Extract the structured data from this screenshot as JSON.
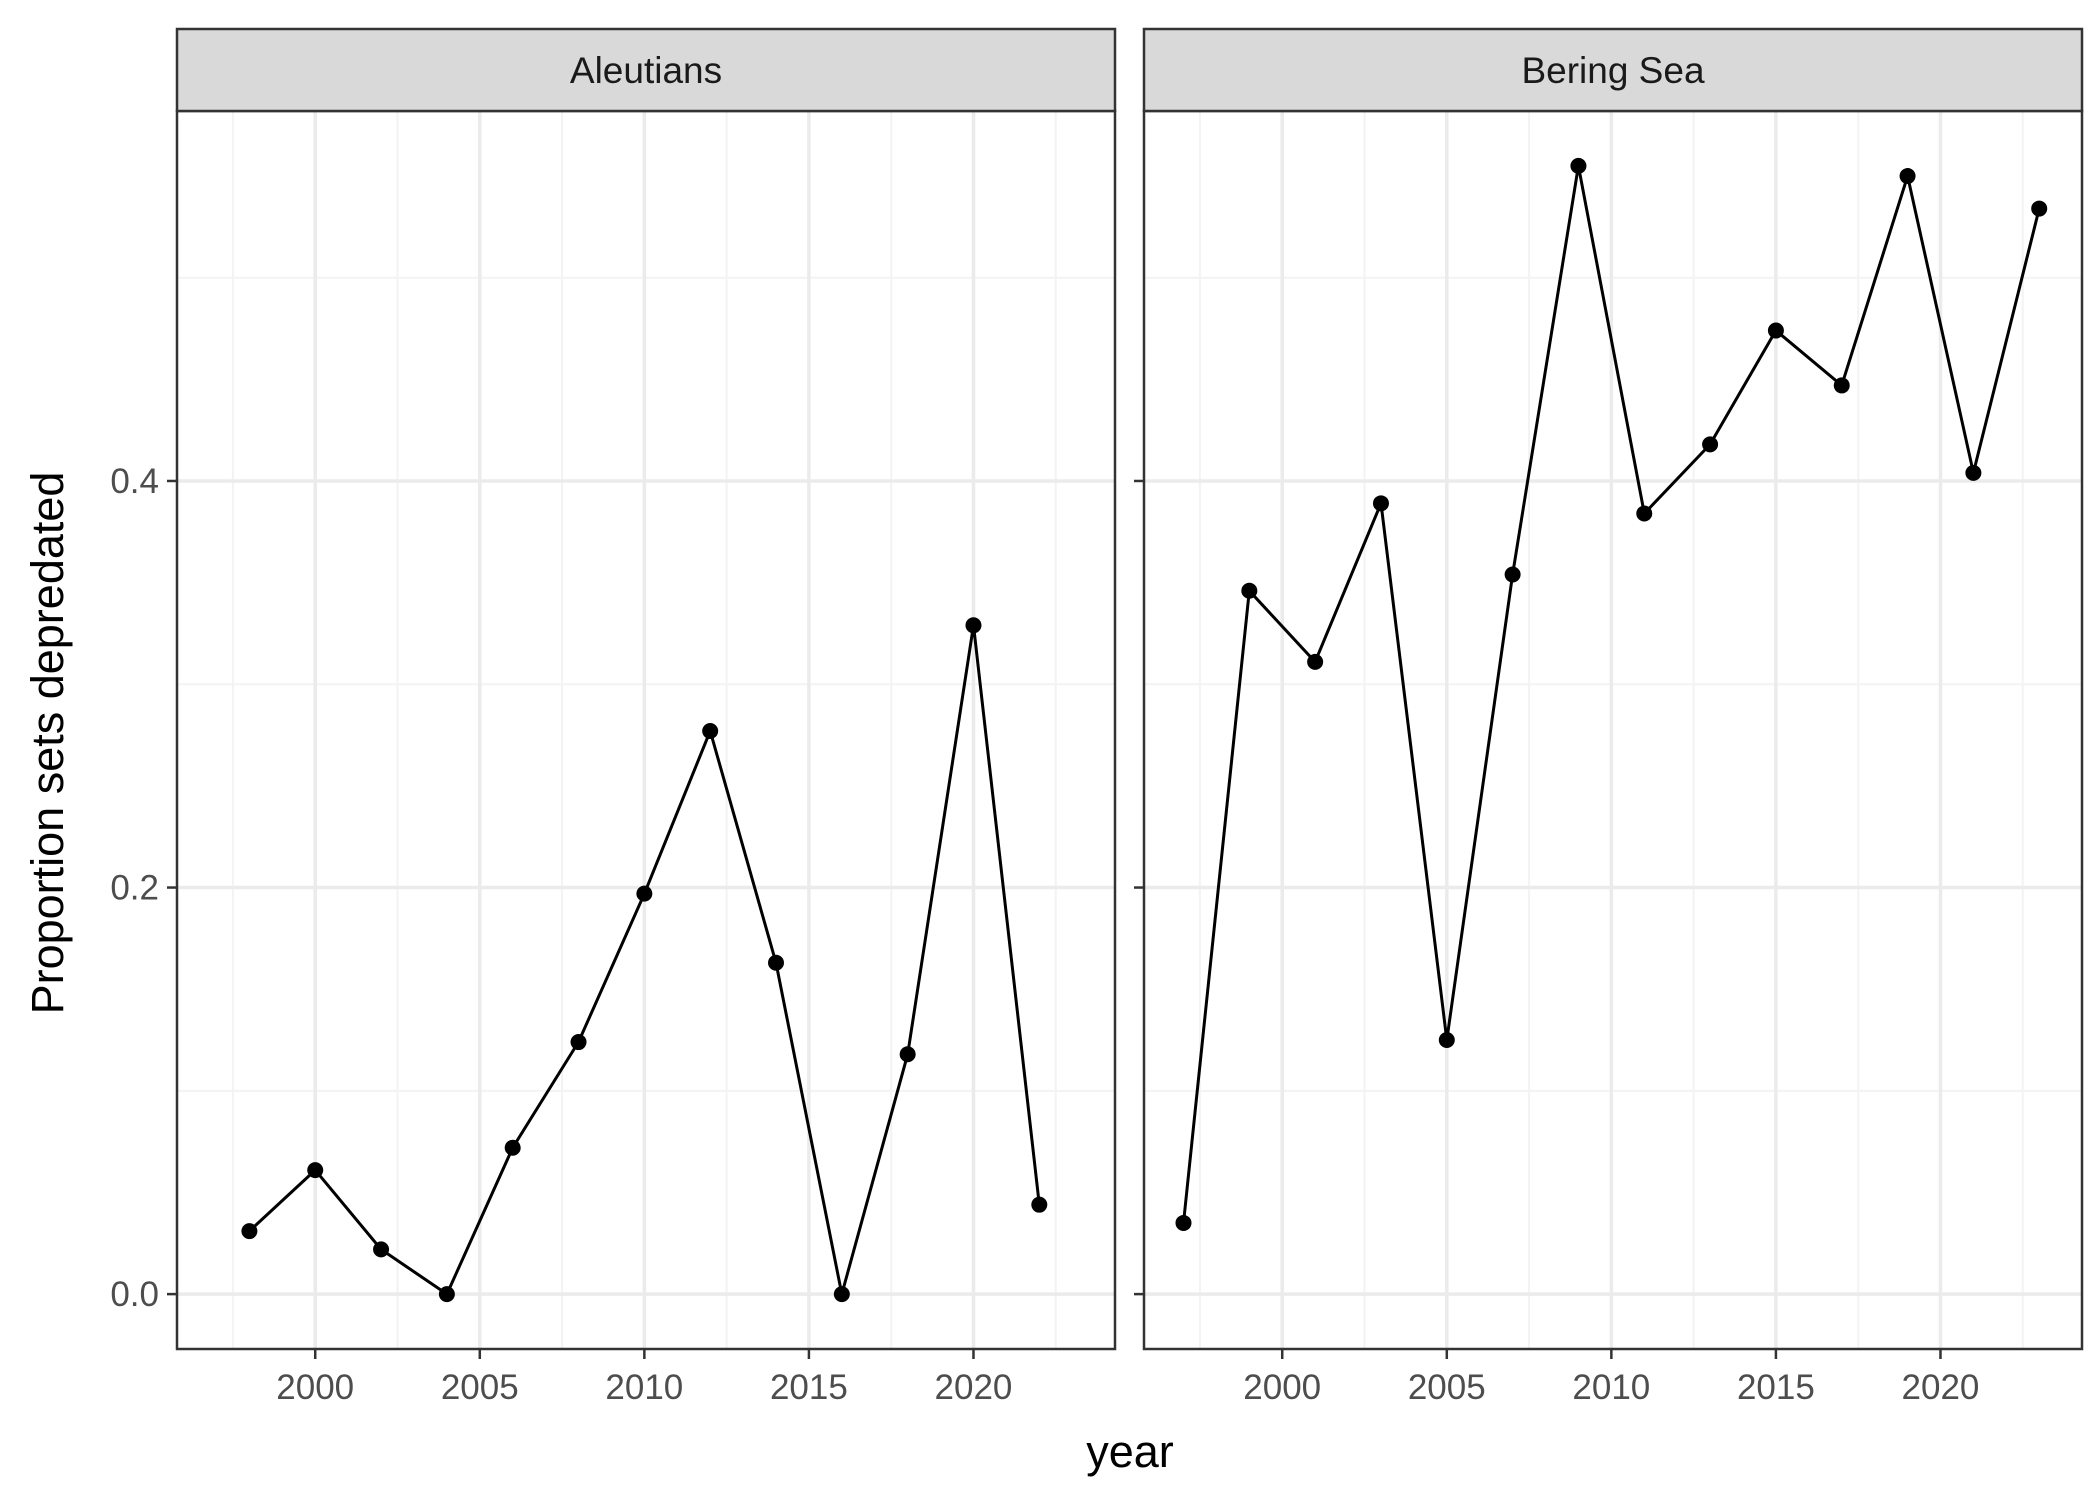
{
  "chart_data": {
    "type": "line",
    "xlabel": "year",
    "ylabel": "Proportion sets depredated",
    "xlim": [
      1995.8,
      2024.3
    ],
    "ylim": [
      -0.027,
      0.582
    ],
    "x_ticks": [
      2000,
      2005,
      2010,
      2015,
      2020
    ],
    "y_ticks": [
      0.0,
      0.2,
      0.4
    ],
    "y_tick_labels": [
      "0.0",
      "0.2",
      "0.4"
    ],
    "grid": true,
    "legend": "none",
    "panels": [
      {
        "label": "Aleutians",
        "x": [
          1998,
          2000,
          2002,
          2004,
          2006,
          2008,
          2010,
          2012,
          2014,
          2016,
          2018,
          2020,
          2022
        ],
        "y": [
          0.031,
          0.061,
          0.022,
          0.0,
          0.072,
          0.124,
          0.197,
          0.277,
          0.163,
          0.0,
          0.118,
          0.329,
          0.044
        ]
      },
      {
        "label": "Bering Sea",
        "x": [
          1997,
          1999,
          2001,
          2003,
          2005,
          2007,
          2009,
          2011,
          2013,
          2015,
          2017,
          2019,
          2021,
          2023
        ],
        "y": [
          0.035,
          0.346,
          0.311,
          0.389,
          0.125,
          0.354,
          0.555,
          0.384,
          0.418,
          0.474,
          0.447,
          0.55,
          0.404,
          0.534
        ]
      }
    ]
  },
  "colors": {
    "line": "#000000",
    "point": "#000000",
    "strip_fill": "#d9d9d9",
    "grid_major": "#ebebeb",
    "grid_minor": "#f3f3f3",
    "panel_border": "#333333",
    "tick_text": "#4d4d4d"
  }
}
